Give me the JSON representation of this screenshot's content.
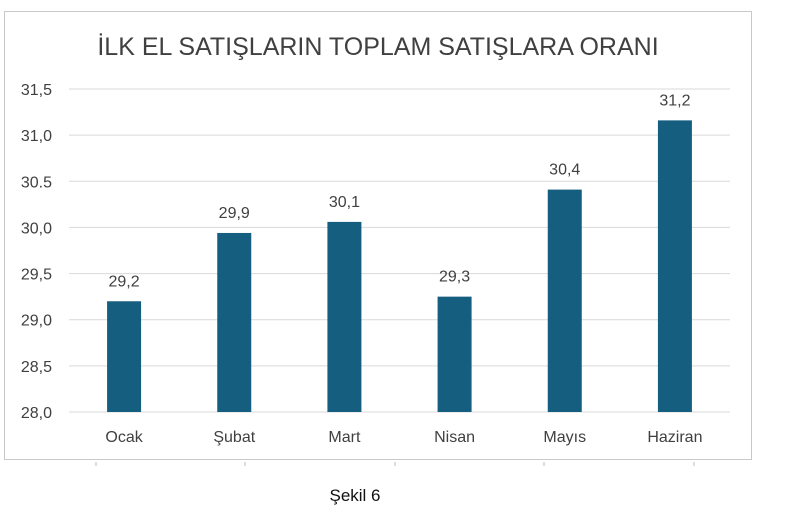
{
  "chart_data": {
    "type": "bar",
    "title": "İLK EL SATIŞLARIN TOPLAM SATIŞLARA ORANI",
    "categories": [
      "Ocak",
      "Şubat",
      "Mart",
      "Nisan",
      "Mayıs",
      "Haziran"
    ],
    "values": [
      29.2,
      29.94,
      30.06,
      29.25,
      30.41,
      31.16
    ],
    "data_labels": [
      "29,2",
      "29,9",
      "30,1",
      "29,3",
      "30,4",
      "31,2"
    ],
    "yticks": [
      "28,0",
      "28,5",
      "29,0",
      "29,5",
      "30,0",
      "30.5",
      "31,0",
      "31,5"
    ],
    "ylim": [
      28.0,
      31.5
    ],
    "grid": true,
    "bar_color": "#155e80"
  },
  "caption": "Şekil 6"
}
